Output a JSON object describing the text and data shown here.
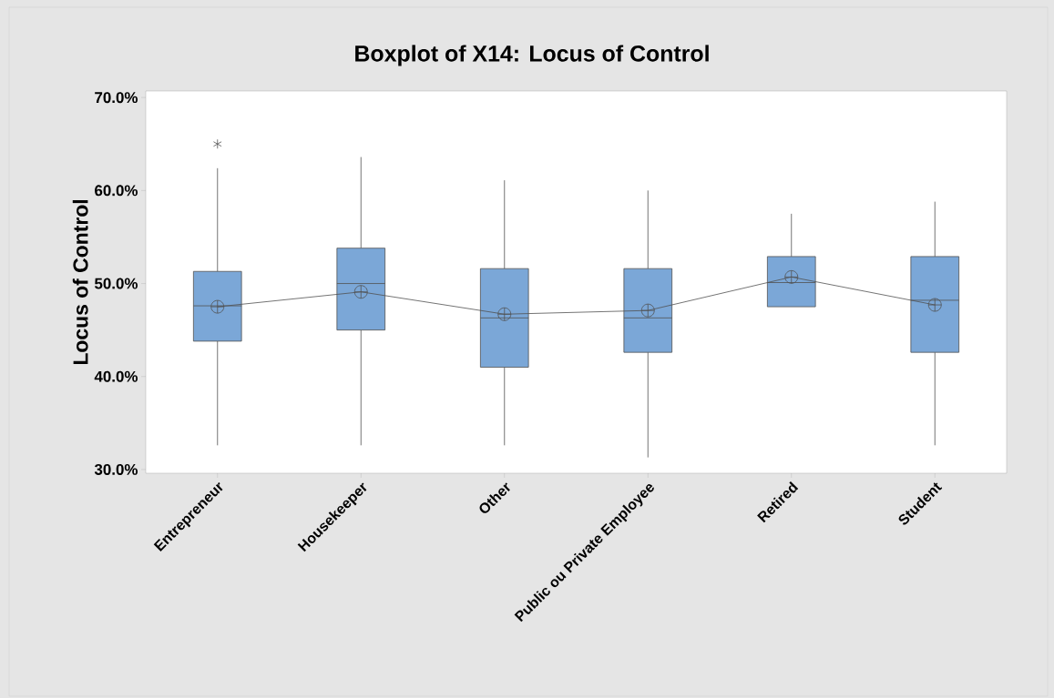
{
  "chart_data": {
    "type": "box",
    "title": "Boxplot of X14: Locus of Control",
    "ylabel": "Locus of Control",
    "categories": [
      "Entrepreneur",
      "Housekeeper",
      "Other",
      "Public ou Private Employee",
      "Retired",
      "Student"
    ],
    "boxes": [
      {
        "low": 32.6,
        "q1": 43.8,
        "median": 47.6,
        "q3": 51.3,
        "high": 62.4,
        "mean": 47.5,
        "outliers": [
          65.0
        ]
      },
      {
        "low": 32.6,
        "q1": 45.0,
        "median": 50.0,
        "q3": 53.8,
        "high": 63.6,
        "mean": 49.1
      },
      {
        "low": 32.6,
        "q1": 41.0,
        "median": 46.3,
        "q3": 51.6,
        "high": 61.1,
        "mean": 46.7
      },
      {
        "low": 31.3,
        "q1": 42.6,
        "median": 46.3,
        "q3": 51.6,
        "high": 60.0,
        "mean": 47.1
      },
      {
        "low": 47.5,
        "q1": 47.5,
        "median": 50.1,
        "q3": 52.9,
        "high": 57.5,
        "mean": 50.7
      },
      {
        "low": 32.6,
        "q1": 42.6,
        "median": 48.2,
        "q3": 52.9,
        "high": 58.8,
        "mean": 47.7
      }
    ],
    "color": "#7ba7d7",
    "series": [
      {
        "type": "line",
        "color": "#505050",
        "values": [
          47.5,
          49.1,
          46.7,
          47.1,
          50.7,
          47.7
        ]
      }
    ],
    "ylim": [
      29.6,
      70.7
    ],
    "yticks": [
      {
        "value": 30,
        "label": "30.0%"
      },
      {
        "value": 40,
        "label": "40.0%"
      },
      {
        "value": 50,
        "label": "50.0%"
      },
      {
        "value": 60,
        "label": "60.0%"
      },
      {
        "value": 70,
        "label": "70.0%"
      }
    ]
  }
}
